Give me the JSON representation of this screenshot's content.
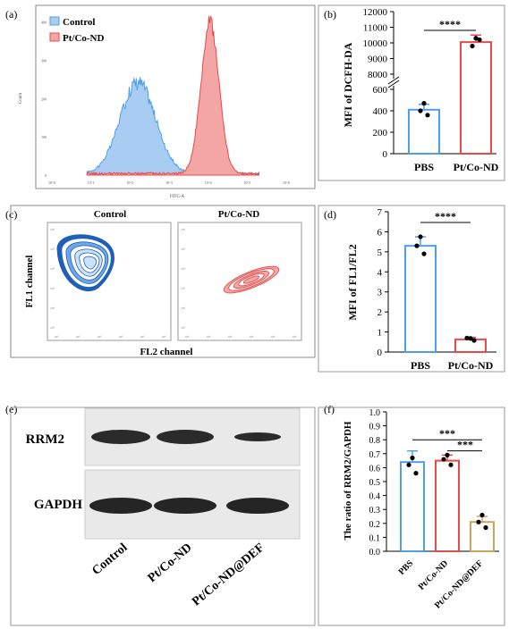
{
  "panels": {
    "a": "(a)",
    "b": "(b)",
    "c": "(c)",
    "d": "(d)",
    "e": "(e)",
    "f": "(f)"
  },
  "colors": {
    "control": "#4f9fe8",
    "ptco": "#e84a4a",
    "def": "#c9a55e",
    "blot": "#1a1a1a"
  },
  "chart_data": [
    {
      "panel": "a",
      "type": "area",
      "legend": [
        "Control",
        "Pt/Co-ND"
      ],
      "legend_position": "top-left",
      "xlabel": "FITC-A",
      "ylabel": "Count",
      "y_ticks": [
        "400",
        "300",
        "200",
        "100",
        "0"
      ],
      "x_ticks": [
        "10^0",
        "10^1",
        "10^2",
        "10^3",
        "10^4",
        "10^5",
        "10^6"
      ],
      "series": [
        {
          "name": "Control",
          "peak_log_x": 2.2,
          "peak_count": 240,
          "width_decades": 0.45
        },
        {
          "name": "Pt/Co-ND",
          "peak_log_x": 4.05,
          "peak_count": 395,
          "width_decades": 0.23
        }
      ]
    },
    {
      "panel": "b",
      "type": "bar",
      "ylabel": "MFI of DCFH-DA",
      "categories": [
        "PBS",
        "Pt/Co-ND"
      ],
      "values": [
        410,
        10050
      ],
      "errors": [
        50,
        450
      ],
      "points": [
        [
          470,
          400,
          360
        ],
        [
          10300,
          9800,
          10200
        ]
      ],
      "y_ticks_low": [
        "0",
        "200",
        "400",
        "600"
      ],
      "y_ticks_high": [
        "8000",
        "9000",
        "10000",
        "11000",
        "12000"
      ],
      "y_break": true,
      "significance": "****"
    },
    {
      "panel": "c",
      "type": "contour",
      "titles": [
        "Control",
        "Pt/Co-ND"
      ],
      "xlabel": "FL2 channel",
      "ylabel": "FL1 channel"
    },
    {
      "panel": "d",
      "type": "bar",
      "ylabel": "MFI of FL1/FL2",
      "categories": [
        "PBS",
        "Pt/Co-ND"
      ],
      "values": [
        5.3,
        0.63
      ],
      "errors": [
        0.45,
        0.1
      ],
      "points": [
        [
          5.75,
          5.3,
          4.9
        ],
        [
          0.68,
          0.7,
          0.58
        ]
      ],
      "ylim": [
        0,
        7
      ],
      "y_ticks": [
        "0",
        "1",
        "2",
        "3",
        "4",
        "5",
        "6",
        "7"
      ],
      "significance": "****"
    },
    {
      "panel": "e",
      "type": "western-blot",
      "rows": [
        "RRM2",
        "GAPDH"
      ],
      "lanes": [
        "Control",
        "Pt/Co-ND",
        "Pt/Co-ND@DEF"
      ]
    },
    {
      "panel": "f",
      "type": "bar",
      "ylabel": "The ratio of RRM2/GAPDH",
      "categories": [
        "PBS",
        "Pt/Co-ND",
        "Pt/Co-ND@DEF"
      ],
      "values": [
        0.64,
        0.65,
        0.21
      ],
      "errors": [
        0.08,
        0.04,
        0.04
      ],
      "points": [
        [
          0.67,
          0.62,
          0.56
        ],
        [
          0.69,
          0.66,
          0.62
        ],
        [
          0.26,
          0.21,
          0.17
        ]
      ],
      "ylim": [
        0,
        1.0
      ],
      "y_ticks": [
        "0.0",
        "0.1",
        "0.2",
        "0.3",
        "0.4",
        "0.5",
        "0.6",
        "0.7",
        "0.8",
        "0.9",
        "1.0"
      ],
      "significance": [
        "***",
        "***"
      ]
    }
  ]
}
